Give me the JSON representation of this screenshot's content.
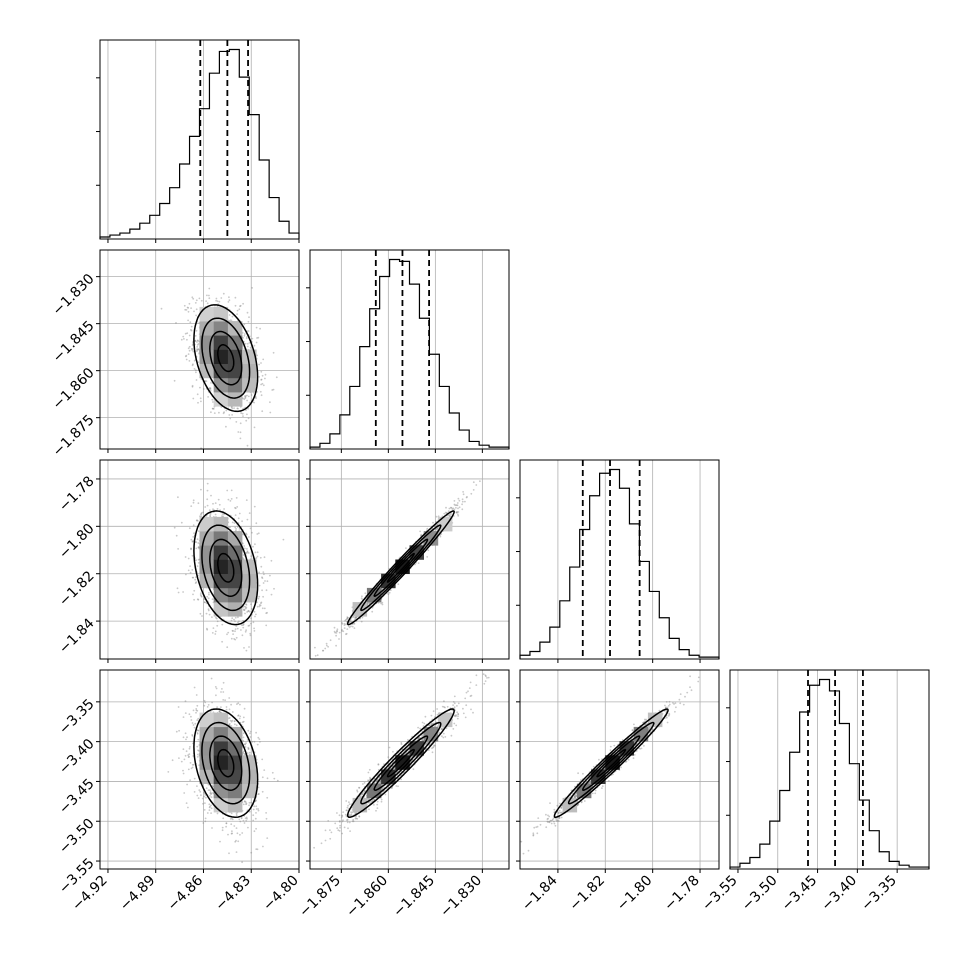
{
  "chart_data": {
    "type": "corner",
    "grid": true,
    "parameters": [
      {
        "range": [
          -4.925,
          -4.8
        ],
        "ticks": [
          "-4.92",
          "-4.89",
          "-4.86",
          "-4.83",
          "-4.80"
        ],
        "tick_values": [
          -4.92,
          -4.89,
          -4.86,
          -4.83,
          -4.8
        ],
        "quantiles": [
          -4.862,
          -4.845,
          -4.832
        ],
        "mean": -4.846,
        "sd": 0.01
      },
      {
        "range": [
          -1.885,
          -1.8215
        ],
        "ticks": [
          "-1.830",
          "-1.845",
          "-1.860",
          "-1.875"
        ],
        "tick_values": [
          -1.83,
          -1.845,
          -1.86,
          -1.875
        ],
        "quantiles": [
          -1.864,
          -1.8555,
          -1.847
        ],
        "mean": -1.856,
        "sd": 0.0085
      },
      {
        "range": [
          -1.856,
          -1.772
        ],
        "ticks": [
          "-1.84",
          "-1.82",
          "-1.80",
          "-1.78"
        ],
        "tick_values": [
          -1.84,
          -1.82,
          -1.8,
          -1.78
        ],
        "quantiles": [
          -1.8295,
          -1.818,
          -1.8055
        ],
        "mean": -1.8175,
        "sd": 0.012
      },
      {
        "range": [
          -3.56,
          -3.31
        ],
        "ticks": [
          "-3.55",
          "-3.50",
          "-3.45",
          "-3.40",
          "-3.35"
        ],
        "tick_values": [
          -3.55,
          -3.5,
          -3.45,
          -3.4,
          -3.35
        ],
        "quantiles": [
          -3.462,
          -3.428,
          -3.393
        ],
        "mean": -3.427,
        "sd": 0.034
      }
    ],
    "histograms": [
      {
        "param": 0,
        "counts": [
          1,
          2,
          3,
          5,
          8,
          12,
          18,
          26,
          38,
          52,
          66,
          84,
          95,
          96,
          82,
          63,
          40,
          21,
          9,
          3
        ]
      },
      {
        "param": 1,
        "counts": [
          1,
          3,
          8,
          18,
          33,
          54,
          74,
          91,
          100,
          99,
          87,
          69,
          50,
          33,
          19,
          10,
          4,
          2,
          1,
          1
        ]
      },
      {
        "param": 2,
        "counts": [
          2,
          4,
          9,
          17,
          31,
          49,
          69,
          87,
          99,
          101,
          91,
          72,
          52,
          36,
          22,
          11,
          5,
          2,
          1,
          1
        ]
      },
      {
        "param": 3,
        "counts": [
          1,
          3,
          6,
          13,
          25,
          41,
          61,
          82,
          96,
          99,
          93,
          76,
          55,
          36,
          20,
          9,
          4,
          2,
          1,
          1
        ]
      }
    ],
    "correlations": [
      {
        "pair": [
          0,
          1
        ],
        "rho": -0.35
      },
      {
        "pair": [
          0,
          2
        ],
        "rho": -0.3
      },
      {
        "pair": [
          0,
          3
        ],
        "rho": -0.3
      },
      {
        "pair": [
          1,
          2
        ],
        "rho": 0.985
      },
      {
        "pair": [
          1,
          3
        ],
        "rho": 0.965
      },
      {
        "pair": [
          2,
          3
        ],
        "rho": 0.98
      }
    ],
    "title": "",
    "xlabel": "",
    "ylabel": ""
  }
}
